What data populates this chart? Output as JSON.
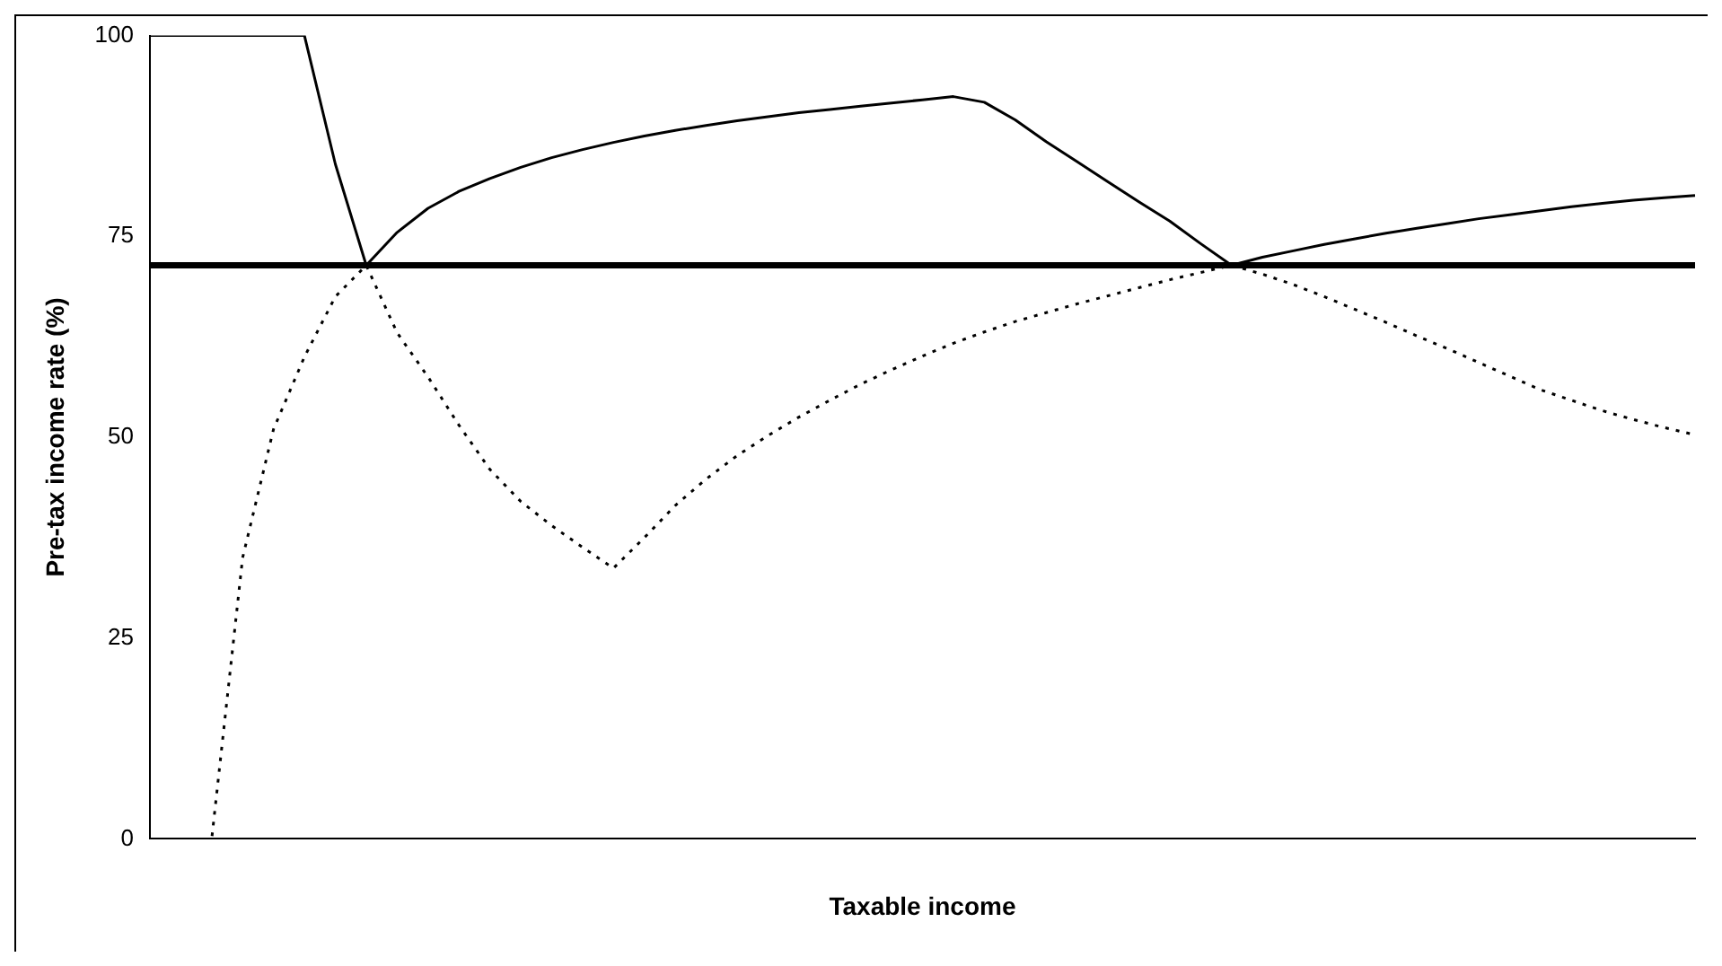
{
  "chart_data": {
    "type": "line",
    "xlabel": "Taxable income",
    "ylabel": "Pre-tax income rate (%)",
    "categories": [
      null,
      null,
      null,
      null,
      null,
      null,
      null,
      null,
      null,
      null,
      null,
      null,
      null,
      null,
      null,
      null,
      null,
      null,
      null,
      null,
      null,
      null,
      null,
      null,
      null,
      null,
      null,
      null,
      null,
      null,
      null,
      null,
      null,
      null,
      null,
      null,
      null,
      null,
      null,
      null,
      null,
      null,
      null,
      null,
      null,
      null,
      null,
      null,
      null,
      null,
      null
    ],
    "series": [
      {
        "color": "#000000",
        "line_style": "solid",
        "values": [
          100,
          100,
          100,
          100,
          100,
          100,
          84,
          71.4,
          75.5,
          78.5,
          80.6,
          82.2,
          83.6,
          84.8,
          85.8,
          86.7,
          87.5,
          88.2,
          88.8,
          89.4,
          89.9,
          90.4,
          90.8,
          91.2,
          91.6,
          92.0,
          92.4,
          91.7,
          89.5,
          86.8,
          84.3,
          81.8,
          79.3,
          76.9,
          74.1,
          71.4,
          72.4,
          73.2,
          74.0,
          74.7,
          75.4,
          76.0,
          76.6,
          77.2,
          77.7,
          78.2,
          78.7,
          79.1,
          79.5,
          79.8,
          80.1
        ]
      },
      {
        "color": "#000000",
        "line_style": "dotted",
        "values": [
          0,
          0,
          0,
          35,
          51,
          60,
          67.5,
          71.4,
          63,
          57.5,
          51.5,
          46,
          42,
          39,
          36.3,
          33.7,
          37.5,
          41.5,
          44.8,
          47.7,
          50.2,
          52.5,
          54.6,
          56.6,
          58.4,
          60.1,
          61.7,
          63.1,
          64.4,
          65.5,
          66.6,
          67.6,
          68.6,
          69.6,
          70.5,
          71.4,
          70.3,
          69.0,
          67.5,
          65.9,
          64.3,
          62.6,
          61.0,
          59.3,
          57.6,
          55.9,
          54.6,
          53.3,
          52.2,
          51.2,
          50.3
        ]
      }
    ],
    "ref_lines": [
      {
        "axis": "y",
        "value": 71.4,
        "color": "#000000"
      }
    ],
    "ylim": [
      0,
      100
    ],
    "yticks": [
      0,
      25,
      50,
      75,
      100
    ],
    "grid": false,
    "legend": false,
    "marker": "none",
    "tick_labels": "y"
  }
}
